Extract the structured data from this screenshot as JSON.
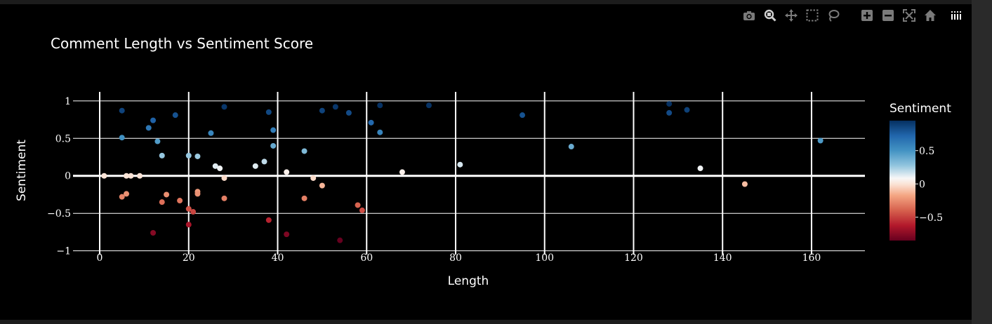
{
  "toolbar": {
    "buttons": [
      {
        "name": "camera-icon",
        "label": "Download plot as a png"
      },
      {
        "name": "zoom-icon",
        "label": "Zoom"
      },
      {
        "name": "pan-icon",
        "label": "Pan"
      },
      {
        "name": "box-select-icon",
        "label": "Box Select"
      },
      {
        "name": "lasso-select-icon",
        "label": "Lasso Select"
      },
      {
        "name": "zoom-in-icon",
        "label": "Zoom in"
      },
      {
        "name": "zoom-out-icon",
        "label": "Zoom out"
      },
      {
        "name": "autoscale-icon",
        "label": "Autoscale"
      },
      {
        "name": "reset-axes-icon",
        "label": "Reset axes"
      },
      {
        "name": "plotly-logo-icon",
        "label": "Produced with Plotly"
      }
    ]
  },
  "chart_data": {
    "type": "scatter",
    "title": "Comment Length vs Sentiment Score",
    "xlabel": "Length",
    "ylabel": "Sentiment",
    "xlim": [
      -6,
      172
    ],
    "ylim": [
      -1.05,
      1.12
    ],
    "xticks": [
      0,
      20,
      40,
      60,
      80,
      100,
      120,
      140,
      160
    ],
    "xtick_labels": [
      "0",
      "20",
      "40",
      "60",
      "80",
      "100",
      "120",
      "140",
      "160"
    ],
    "yticks": [
      1,
      0.5,
      0,
      -0.5,
      -1
    ],
    "ytick_labels": [
      "1",
      "0.5",
      "0",
      "−0.5",
      "−1"
    ],
    "grid": true,
    "colorbar": {
      "title": "Sentiment",
      "colorscale": "RdBu",
      "min": -0.85,
      "max": 0.95,
      "ticks": [
        0.5,
        0,
        -0.5
      ],
      "tick_labels": [
        "0.5",
        "0",
        "−0.5"
      ]
    },
    "points": [
      {
        "x": 1,
        "y": 0.0
      },
      {
        "x": 5,
        "y": 0.87
      },
      {
        "x": 5,
        "y": 0.51
      },
      {
        "x": 5,
        "y": -0.28
      },
      {
        "x": 6,
        "y": 0.0
      },
      {
        "x": 6,
        "y": -0.24
      },
      {
        "x": 7,
        "y": 0.0
      },
      {
        "x": 9,
        "y": 0.0
      },
      {
        "x": 11,
        "y": 0.64
      },
      {
        "x": 12,
        "y": 0.74
      },
      {
        "x": 12,
        "y": -0.76
      },
      {
        "x": 13,
        "y": 0.46
      },
      {
        "x": 14,
        "y": 0.27
      },
      {
        "x": 14,
        "y": -0.35
      },
      {
        "x": 15,
        "y": -0.25
      },
      {
        "x": 17,
        "y": 0.81
      },
      {
        "x": 18,
        "y": -0.33
      },
      {
        "x": 20,
        "y": 0.27
      },
      {
        "x": 20,
        "y": -0.44
      },
      {
        "x": 20,
        "y": -0.65
      },
      {
        "x": 21,
        "y": -0.48
      },
      {
        "x": 22,
        "y": 0.26
      },
      {
        "x": 22,
        "y": -0.21
      },
      {
        "x": 22,
        "y": -0.24
      },
      {
        "x": 25,
        "y": 0.57
      },
      {
        "x": 26,
        "y": 0.13
      },
      {
        "x": 27,
        "y": 0.1
      },
      {
        "x": 28,
        "y": 0.92
      },
      {
        "x": 28,
        "y": -0.03
      },
      {
        "x": 28,
        "y": -0.3
      },
      {
        "x": 35,
        "y": 0.13
      },
      {
        "x": 37,
        "y": 0.19
      },
      {
        "x": 38,
        "y": 0.85
      },
      {
        "x": 38,
        "y": -0.59
      },
      {
        "x": 39,
        "y": 0.61
      },
      {
        "x": 39,
        "y": 0.4
      },
      {
        "x": 42,
        "y": 0.05
      },
      {
        "x": 42,
        "y": -0.78
      },
      {
        "x": 46,
        "y": 0.33
      },
      {
        "x": 46,
        "y": -0.3
      },
      {
        "x": 48,
        "y": -0.03
      },
      {
        "x": 50,
        "y": 0.87
      },
      {
        "x": 50,
        "y": -0.13
      },
      {
        "x": 53,
        "y": 0.92
      },
      {
        "x": 54,
        "y": -0.86
      },
      {
        "x": 56,
        "y": 0.84
      },
      {
        "x": 58,
        "y": -0.39
      },
      {
        "x": 59,
        "y": -0.46
      },
      {
        "x": 61,
        "y": 0.71
      },
      {
        "x": 63,
        "y": 0.94
      },
      {
        "x": 63,
        "y": 0.58
      },
      {
        "x": 68,
        "y": 0.05
      },
      {
        "x": 74,
        "y": 0.94
      },
      {
        "x": 81,
        "y": 0.15
      },
      {
        "x": 95,
        "y": 0.81
      },
      {
        "x": 106,
        "y": 0.39
      },
      {
        "x": 128,
        "y": 0.96
      },
      {
        "x": 128,
        "y": 0.84
      },
      {
        "x": 132,
        "y": 0.88
      },
      {
        "x": 135,
        "y": 0.1
      },
      {
        "x": 145,
        "y": -0.11
      },
      {
        "x": 162,
        "y": 0.47
      }
    ]
  }
}
